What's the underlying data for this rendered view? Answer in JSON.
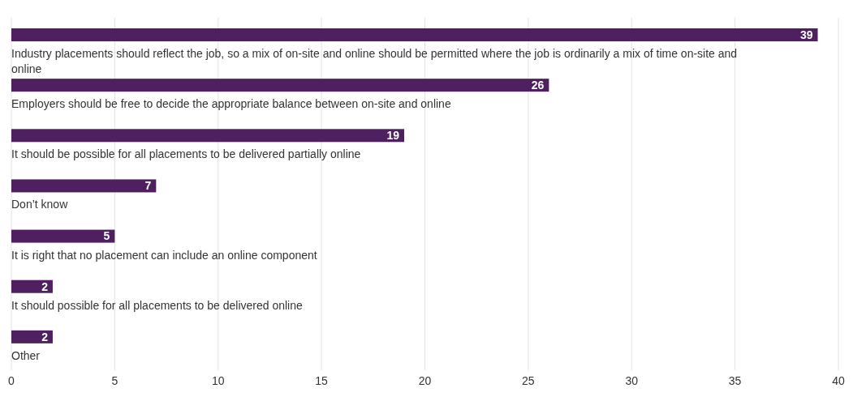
{
  "chart_data": {
    "type": "bar",
    "orientation": "horizontal",
    "categories": [
      "Industry placements should reflect the job, so a mix of on-site and online should be permitted where the job is ordinarily a mix of time on-site and online",
      "Employers should be free to decide the appropriate balance between on-site and online",
      "It should be possible for all placements to be delivered partially online",
      "Don’t know",
      "It is right that no placement can include an online component",
      "It should possible for all placements to be delivered online",
      "Other"
    ],
    "values": [
      39,
      26,
      19,
      7,
      5,
      2,
      2
    ],
    "color": "#4e2060",
    "xlim": [
      0,
      40
    ],
    "xticks": [
      0,
      5,
      10,
      15,
      20,
      25,
      30,
      35,
      40
    ],
    "grid": "x",
    "data_labels": true
  }
}
